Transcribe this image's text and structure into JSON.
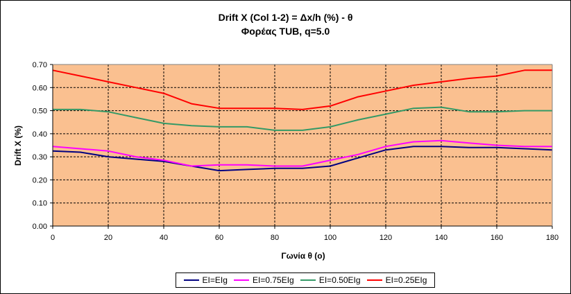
{
  "chart_data": {
    "type": "line",
    "title": "Drift X (Col 1-2) = Δx/h (%) - θ",
    "subtitle": "Φορέας TUB, q=5.0",
    "xlabel": "Γωνία θ (ο)",
    "ylabel": "Drift X (%)",
    "xlim": [
      0,
      180
    ],
    "ylim": [
      0,
      0.7
    ],
    "x_ticks": [
      "0",
      "20",
      "40",
      "60",
      "80",
      "100",
      "120",
      "140",
      "160",
      "180"
    ],
    "y_ticks": [
      "0.00",
      "0.10",
      "0.20",
      "0.30",
      "0.40",
      "0.50",
      "0.60",
      "0.70"
    ],
    "grid": true,
    "legend_position": "bottom",
    "plot_background": "#FAC090",
    "x": [
      0,
      10,
      20,
      30,
      40,
      50,
      60,
      70,
      80,
      90,
      100,
      110,
      120,
      130,
      140,
      150,
      160,
      170,
      180
    ],
    "series": [
      {
        "name": "EI=EIg",
        "color": "#000080",
        "values": [
          0.325,
          0.32,
          0.3,
          0.29,
          0.28,
          0.26,
          0.24,
          0.245,
          0.25,
          0.25,
          0.26,
          0.295,
          0.33,
          0.345,
          0.345,
          0.34,
          0.34,
          0.335,
          0.33
        ]
      },
      {
        "name": "EI=0.75EIg",
        "color": "#FF00FF",
        "values": [
          0.345,
          0.335,
          0.325,
          0.3,
          0.285,
          0.26,
          0.265,
          0.265,
          0.26,
          0.26,
          0.285,
          0.31,
          0.345,
          0.365,
          0.37,
          0.36,
          0.35,
          0.345,
          0.345
        ]
      },
      {
        "name": "EI=0.50EIg",
        "color": "#339966",
        "values": [
          0.505,
          0.505,
          0.495,
          0.47,
          0.445,
          0.435,
          0.43,
          0.43,
          0.415,
          0.415,
          0.43,
          0.46,
          0.485,
          0.51,
          0.515,
          0.495,
          0.495,
          0.5,
          0.5
        ]
      },
      {
        "name": "EI=0.25EIg",
        "color": "#FF0000",
        "values": [
          0.675,
          0.65,
          0.625,
          0.6,
          0.575,
          0.53,
          0.51,
          0.51,
          0.51,
          0.505,
          0.52,
          0.56,
          0.585,
          0.61,
          0.625,
          0.64,
          0.65,
          0.675,
          0.675
        ]
      }
    ]
  }
}
